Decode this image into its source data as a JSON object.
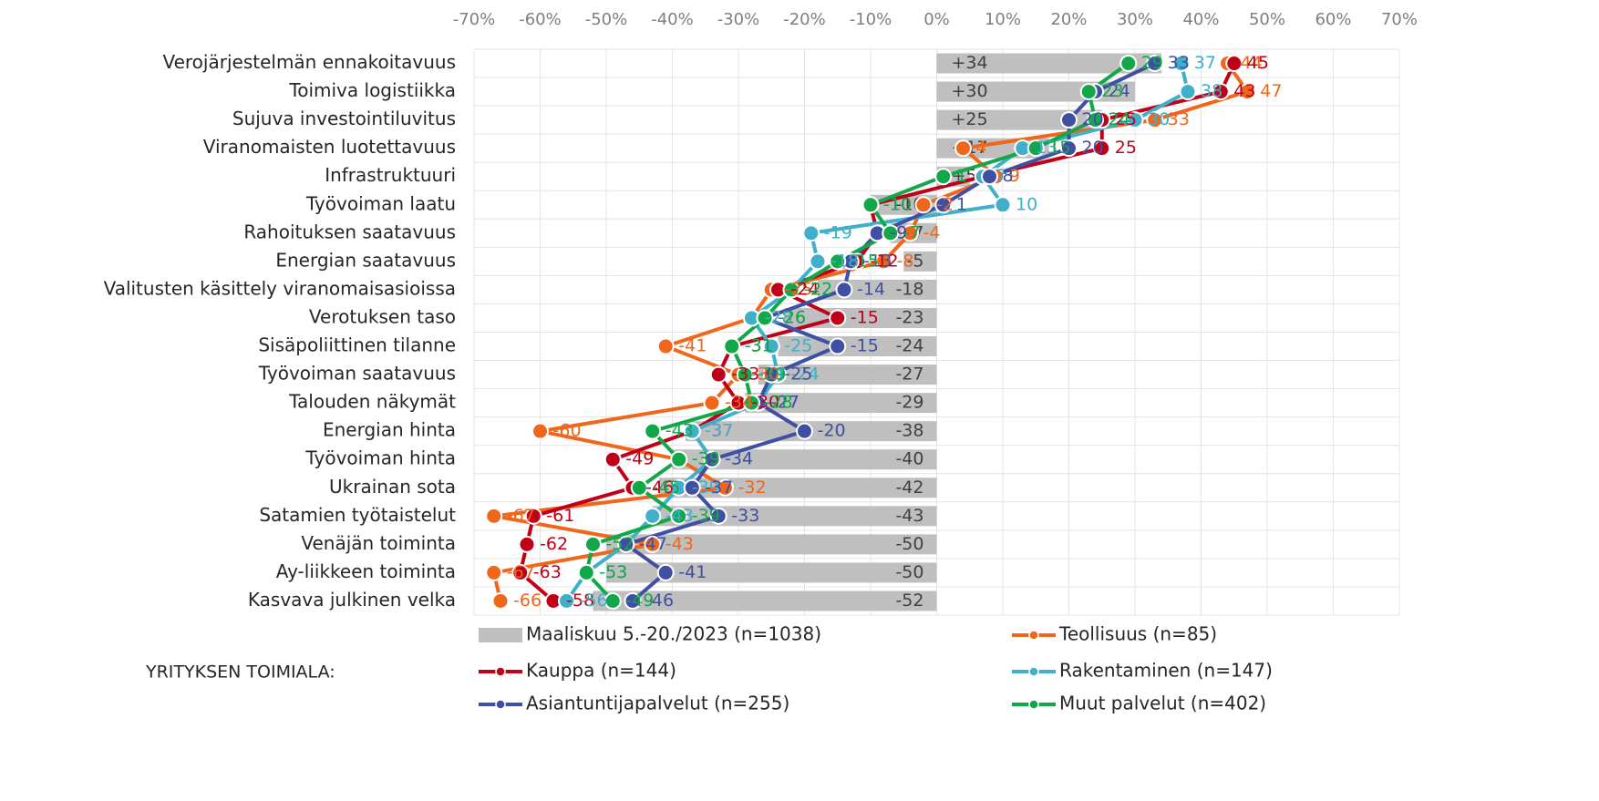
{
  "chart_data": {
    "type": "bar",
    "categories": [
      "Verojärjestelmän ennakoitavuus",
      "Toimiva logistiikka",
      "Sujuva investointiluvitus",
      "Viranomaisten luotettavuus",
      "Infrastruktuuri",
      "Työvoiman laatu",
      "Rahoituksen saatavuus",
      "Energian saatavuus",
      "Valitusten käsittely viranomaisasioissa",
      "Verotuksen taso",
      "Sisäpoliittinen tilanne",
      "Työvoiman saatavuus",
      "Talouden näkymät",
      "Energian hinta",
      "Työvoiman hinta",
      "Ukrainan sota",
      "Satamien työtaistelut",
      "Venäjän toiminta",
      "Ay-liikkeen toiminta",
      "Kasvava julkinen velka"
    ],
    "bar": {
      "name": "Maaliskuu 5.-20./2023 (n=1038)",
      "color": "#bfbfbf",
      "values": [
        34,
        30,
        25,
        17,
        5,
        -10,
        -7,
        -5,
        -18,
        -23,
        -24,
        -27,
        -29,
        -38,
        -40,
        -42,
        -43,
        -50,
        -50,
        -52
      ],
      "value_labels": [
        "+34",
        "+30",
        "+25",
        "+17",
        "+5",
        "-10",
        "-7",
        "-5",
        "-18",
        "-23",
        "-24",
        "-27",
        "-29",
        "-38",
        "-40",
        "-42",
        "-43",
        "-50",
        "-50",
        "-52"
      ]
    },
    "legend_title": "YRITYKSEN TOIMIALA:",
    "series": [
      {
        "name": "Teollisuus (n=85)",
        "color": "#f0661a",
        "values": [
          44,
          47,
          33,
          4,
          9,
          -2,
          -4,
          -8,
          -25,
          -28,
          -41,
          -30,
          -34,
          -60,
          -39,
          -32,
          -67,
          -43,
          -67,
          -66
        ]
      },
      {
        "name": "Kauppa (n=144)",
        "color": "#c00018",
        "values": [
          45,
          43,
          25,
          25,
          7,
          -10,
          -9,
          -12,
          -24,
          -15,
          -31,
          -33,
          -30,
          -37,
          -49,
          -46,
          -61,
          -62,
          -63,
          -58
        ]
      },
      {
        "name": "Rakentaminen (n=147)",
        "color": "#40afc9",
        "values": [
          37,
          38,
          30,
          13,
          7,
          10,
          -19,
          -18,
          -22,
          -28,
          -25,
          -24,
          -27,
          -37,
          -34,
          -39,
          -43,
          -47,
          -53,
          -56
        ]
      },
      {
        "name": "Asiantuntijapalvelut (n=255)",
        "color": "#3f4fa3",
        "values": [
          33,
          24,
          20,
          20,
          8,
          1,
          -9,
          -13,
          -14,
          -26,
          -15,
          -25,
          -27,
          -20,
          -34,
          -37,
          -33,
          -47,
          -41,
          -46
        ]
      },
      {
        "name": "Muut palvelut (n=402)",
        "color": "#12a84a",
        "values": [
          29,
          23,
          24,
          15,
          1,
          -10,
          -7,
          -15,
          -22,
          -26,
          -31,
          -29,
          -28,
          -43,
          -39,
          -45,
          -39,
          -52,
          -53,
          -49
        ]
      }
    ],
    "xlim": [
      -70,
      70
    ],
    "xticks": [
      {
        "value": -70,
        "label": "-70%"
      },
      {
        "value": -60,
        "label": "-60%"
      },
      {
        "value": -50,
        "label": "-50%"
      },
      {
        "value": -40,
        "label": "-40%"
      },
      {
        "value": -30,
        "label": "-30%"
      },
      {
        "value": -20,
        "label": "-20%"
      },
      {
        "value": -10,
        "label": "-10%"
      },
      {
        "value": 0,
        "label": "0%"
      },
      {
        "value": 10,
        "label": "10%"
      },
      {
        "value": 20,
        "label": "20%"
      },
      {
        "value": 30,
        "label": "30%"
      },
      {
        "value": 40,
        "label": "40%"
      },
      {
        "value": 50,
        "label": "50%"
      },
      {
        "value": 60,
        "label": "60%"
      },
      {
        "value": 70,
        "label": "70%"
      }
    ],
    "grid": true
  }
}
